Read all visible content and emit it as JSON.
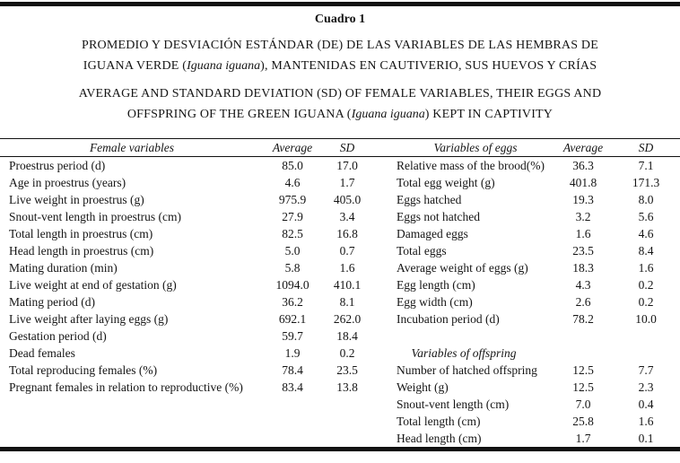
{
  "table_caption": "Cuadro 1",
  "title_es": {
    "line1": "PROMEDIO Y DESVIACIÓN ESTÁNDAR (DE) DE LAS VARIABLES DE LAS HEMBRAS DE",
    "line2_pre": "IGUANA VERDE (",
    "line2_species": "Iguana iguana",
    "line2_post": "), MANTENIDAS EN CAUTIVERIO, SUS HUEVOS Y CRÍAS"
  },
  "title_en": {
    "line1": "AVERAGE AND STANDARD DEVIATION (SD) OF FEMALE VARIABLES, THEIR EGGS AND",
    "line2_pre": "OFFSPRING OF THE GREEN IGUANA (",
    "line2_species": "Iguana iguana",
    "line2_post": ") KEPT IN CAPTIVITY"
  },
  "columns": {
    "female_variables": "Female variables",
    "female_average": "Average",
    "female_sd": "SD",
    "egg_variables": "Variables of eggs",
    "egg_average": "Average",
    "egg_sd": "SD"
  },
  "rows": [
    {
      "f_label": "Proestrus period (d)",
      "f_avg": "85.0",
      "f_sd": "17.0",
      "e_label": "Relative mass of the brood(%)",
      "e_avg": "36.3",
      "e_sd": "7.1"
    },
    {
      "f_label": "Age in proestrus (years)",
      "f_avg": "4.6",
      "f_sd": "1.7",
      "e_label": "Total egg weight (g)",
      "e_avg": "401.8",
      "e_sd": "171.3"
    },
    {
      "f_label": "Live weight in proestrus (g)",
      "f_avg": "975.9",
      "f_sd": "405.0",
      "e_label": "Eggs hatched",
      "e_avg": "19.3",
      "e_sd": "8.0"
    },
    {
      "f_label": "Snout-vent length in proestrus (cm)",
      "f_avg": "27.9",
      "f_sd": "3.4",
      "e_label": "Eggs not hatched",
      "e_avg": "3.2",
      "e_sd": "5.6"
    },
    {
      "f_label": "Total length in proestrus (cm)",
      "f_avg": "82.5",
      "f_sd": "16.8",
      "e_label": "Damaged eggs",
      "e_avg": "1.6",
      "e_sd": "4.6"
    },
    {
      "f_label": "Head length in proestrus (cm)",
      "f_avg": "5.0",
      "f_sd": "0.7",
      "e_label": "Total eggs",
      "e_avg": "23.5",
      "e_sd": "8.4"
    },
    {
      "f_label": "Mating duration (min)",
      "f_avg": "5.8",
      "f_sd": "1.6",
      "e_label": "Average weight of eggs (g)",
      "e_avg": "18.3",
      "e_sd": "1.6"
    },
    {
      "f_label": "Live weight at end of gestation (g)",
      "f_avg": "1094.0",
      "f_sd": "410.1",
      "e_label": "Egg length (cm)",
      "e_avg": "4.3",
      "e_sd": "0.2"
    },
    {
      "f_label": "Mating period (d)",
      "f_avg": "36.2",
      "f_sd": "8.1",
      "e_label": "Egg width (cm)",
      "e_avg": "2.6",
      "e_sd": "0.2"
    },
    {
      "f_label": "Live weight after laying eggs (g)",
      "f_avg": "692.1",
      "f_sd": "262.0",
      "e_label": "Incubation period (d)",
      "e_avg": "78.2",
      "e_sd": "10.0"
    },
    {
      "f_label": "Gestation period (d)",
      "f_avg": "59.7",
      "f_sd": "18.4",
      "e_label": "",
      "e_avg": "",
      "e_sd": ""
    },
    {
      "f_label": "Dead females",
      "f_avg": "1.9",
      "f_sd": "0.2",
      "e_label": "Variables of offspring",
      "e_avg": "",
      "e_sd": "",
      "e_subhead": true
    },
    {
      "f_label": "Total reproducing females (%)",
      "f_avg": "78.4",
      "f_sd": "23.5",
      "e_label": "Number of hatched offspring",
      "e_avg": "12.5",
      "e_sd": "7.7"
    },
    {
      "f_label": "Pregnant females in relation to reproductive (%)",
      "f_avg": "83.4",
      "f_sd": "13.8",
      "e_label": "Weight (g)",
      "e_avg": "12.5",
      "e_sd": "2.3"
    },
    {
      "f_label": "",
      "f_avg": "",
      "f_sd": "",
      "e_label": "Snout-vent length (cm)",
      "e_avg": "7.0",
      "e_sd": "0.4"
    },
    {
      "f_label": "",
      "f_avg": "",
      "f_sd": "",
      "e_label": "Total length (cm)",
      "e_avg": "25.8",
      "e_sd": "1.6"
    },
    {
      "f_label": "",
      "f_avg": "",
      "f_sd": "",
      "e_label": "Head length (cm)",
      "e_avg": "1.7",
      "e_sd": "0.1"
    }
  ]
}
